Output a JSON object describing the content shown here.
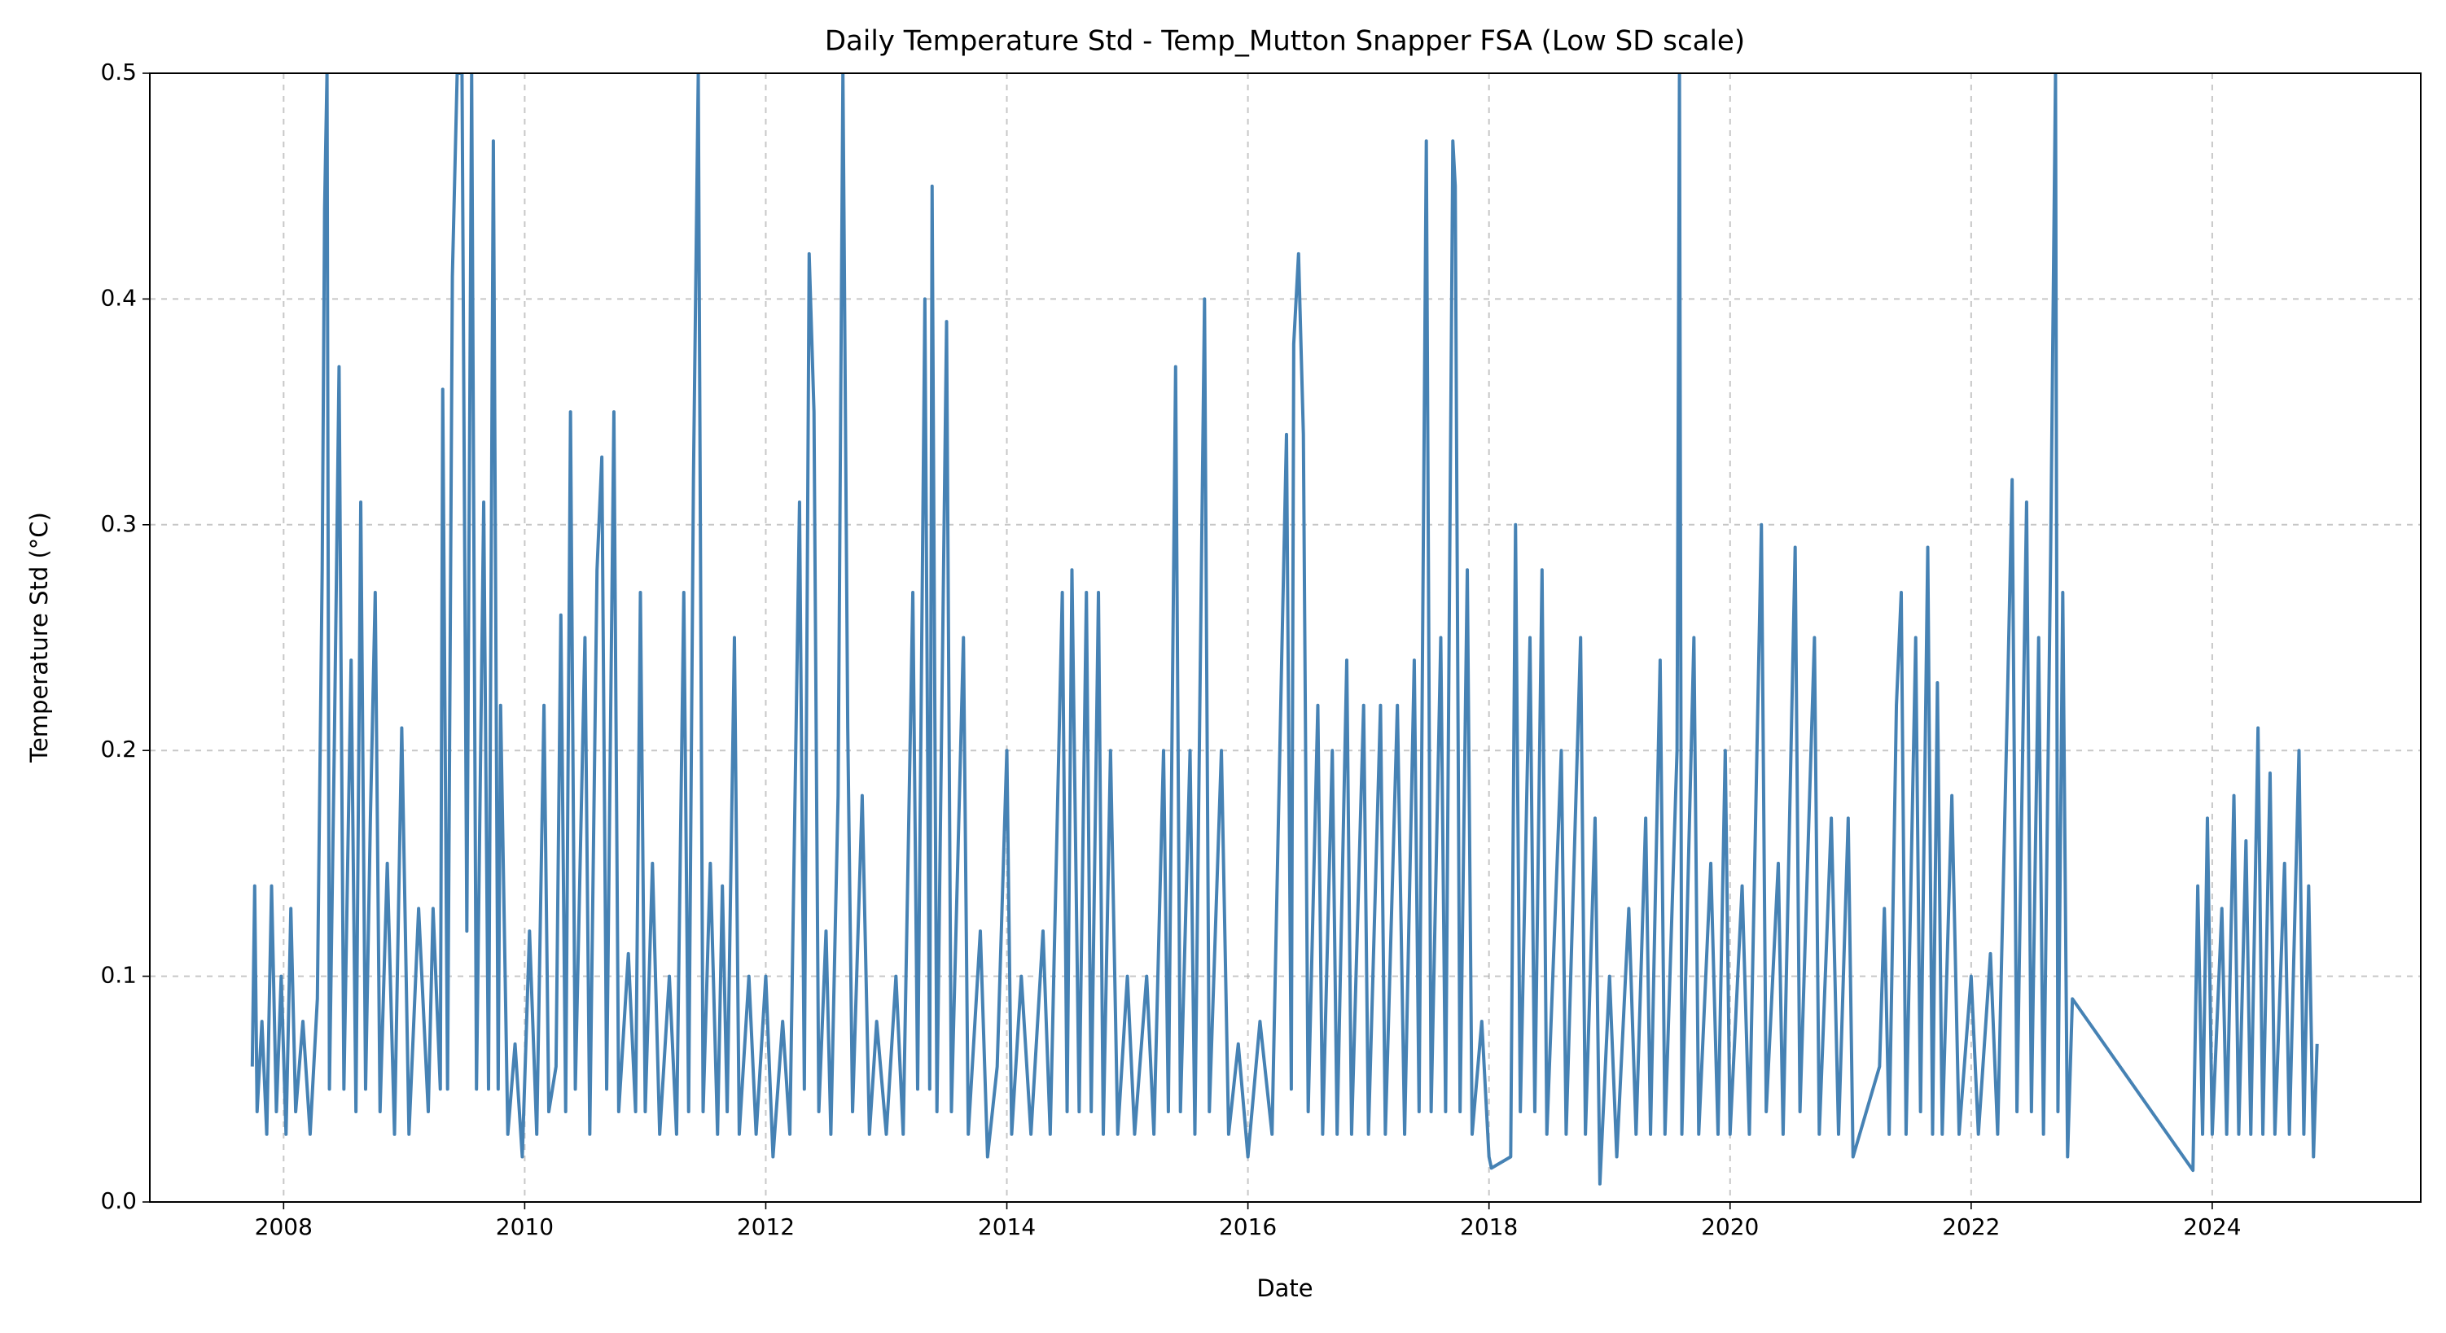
{
  "chart_data": {
    "type": "line",
    "title": "Daily Temperature Std - Temp_Mutton Snapper FSA (Low SD scale)",
    "xlabel": "Date",
    "ylabel": "Temperature Std (°C)",
    "xlim": [
      2006.89,
      2025.73
    ],
    "ylim": [
      0,
      0.5
    ],
    "xticks": [
      2008,
      2010,
      2012,
      2014,
      2016,
      2018,
      2020,
      2022,
      2024
    ],
    "yticks": [
      {
        "value": 0,
        "label": "0.0"
      },
      0.1,
      0.2,
      0.3,
      0.4,
      0.5
    ],
    "grid": true,
    "series": [
      {
        "name": "Temperature Std",
        "color": "#4682b4",
        "x": [
          2007.74,
          2007.76,
          2007.78,
          2007.82,
          2007.86,
          2007.9,
          2007.94,
          2007.98,
          2008.02,
          2008.06,
          2008.1,
          2008.16,
          2008.22,
          2008.28,
          2008.32,
          2008.34,
          2008.36,
          2008.38,
          2008.42,
          2008.46,
          2008.5,
          2008.56,
          2008.6,
          2008.64,
          2008.68,
          2008.72,
          2008.76,
          2008.8,
          2008.86,
          2008.92,
          2008.98,
          2009.04,
          2009.12,
          2009.2,
          2009.24,
          2009.3,
          2009.32,
          2009.36,
          2009.4,
          2009.44,
          2009.48,
          2009.52,
          2009.56,
          2009.6,
          2009.66,
          2009.7,
          2009.74,
          2009.78,
          2009.8,
          2009.86,
          2009.92,
          2009.98,
          2010.04,
          2010.1,
          2010.16,
          2010.2,
          2010.26,
          2010.3,
          2010.34,
          2010.38,
          2010.42,
          2010.5,
          2010.54,
          2010.6,
          2010.64,
          2010.68,
          2010.74,
          2010.78,
          2010.86,
          2010.92,
          2010.96,
          2011.0,
          2011.06,
          2011.12,
          2011.2,
          2011.26,
          2011.32,
          2011.36,
          2011.4,
          2011.44,
          2011.48,
          2011.54,
          2011.6,
          2011.64,
          2011.68,
          2011.74,
          2011.78,
          2011.86,
          2011.92,
          2012.0,
          2012.06,
          2012.14,
          2012.2,
          2012.28,
          2012.32,
          2012.36,
          2012.4,
          2012.44,
          2012.5,
          2012.54,
          2012.6,
          2012.64,
          2012.68,
          2012.72,
          2012.8,
          2012.86,
          2012.92,
          2013.0,
          2013.08,
          2013.14,
          2013.22,
          2013.26,
          2013.32,
          2013.36,
          2013.38,
          2013.42,
          2013.5,
          2013.54,
          2013.64,
          2013.68,
          2013.78,
          2013.84,
          2013.92,
          2014.0,
          2014.04,
          2014.12,
          2014.2,
          2014.3,
          2014.36,
          2014.46,
          2014.5,
          2014.54,
          2014.6,
          2014.66,
          2014.7,
          2014.76,
          2014.8,
          2014.86,
          2014.92,
          2015.0,
          2015.06,
          2015.16,
          2015.22,
          2015.3,
          2015.34,
          2015.4,
          2015.44,
          2015.52,
          2015.56,
          2015.64,
          2015.68,
          2015.78,
          2015.84,
          2015.92,
          2016.0,
          2016.1,
          2016.2,
          2016.28,
          2016.32,
          2016.36,
          2016.38,
          2016.42,
          2016.46,
          2016.5,
          2016.58,
          2016.62,
          2016.7,
          2016.74,
          2016.82,
          2016.86,
          2016.96,
          2017.0,
          2017.1,
          2017.14,
          2017.24,
          2017.3,
          2017.38,
          2017.42,
          2017.48,
          2017.52,
          2017.6,
          2017.64,
          2017.7,
          2017.72,
          2017.76,
          2017.82,
          2017.86,
          2017.94,
          2018.0,
          2018.02,
          2018.18,
          2018.22,
          2018.26,
          2018.34,
          2018.38,
          2018.44,
          2018.48,
          2018.6,
          2018.64,
          2018.76,
          2018.8,
          2018.88,
          2018.92,
          2019.0,
          2019.06,
          2019.16,
          2019.22,
          2019.3,
          2019.34,
          2019.42,
          2019.46,
          2019.56,
          2019.58,
          2019.6,
          2019.7,
          2019.74,
          2019.84,
          2019.9,
          2019.96,
          2020.0,
          2020.1,
          2020.16,
          2020.26,
          2020.3,
          2020.4,
          2020.44,
          2020.54,
          2020.58,
          2020.7,
          2020.74,
          2020.84,
          2020.9,
          2020.98,
          2021.02,
          2021.24,
          2021.28,
          2021.32,
          2021.38,
          2021.42,
          2021.46,
          2021.54,
          2021.58,
          2021.64,
          2021.68,
          2021.72,
          2021.76,
          2021.84,
          2021.9,
          2022.0,
          2022.06,
          2022.16,
          2022.22,
          2022.3,
          2022.34,
          2022.38,
          2022.46,
          2022.5,
          2022.56,
          2022.6,
          2022.66,
          2022.7,
          2022.72,
          2022.76,
          2022.8,
          2022.84,
          2023.84,
          2023.88,
          2023.92,
          2023.96,
          2024.0,
          2024.08,
          2024.12,
          2024.18,
          2024.22,
          2024.28,
          2024.32,
          2024.38,
          2024.42,
          2024.48,
          2024.52,
          2024.6,
          2024.64,
          2024.72,
          2024.76,
          2024.8,
          2024.84,
          2024.87
        ],
        "values": [
          0.06,
          0.14,
          0.04,
          0.08,
          0.03,
          0.14,
          0.04,
          0.1,
          0.03,
          0.13,
          0.04,
          0.08,
          0.03,
          0.09,
          0.28,
          0.44,
          0.5,
          0.05,
          0.2,
          0.37,
          0.05,
          0.24,
          0.04,
          0.31,
          0.05,
          0.17,
          0.27,
          0.04,
          0.15,
          0.03,
          0.21,
          0.03,
          0.13,
          0.04,
          0.13,
          0.05,
          0.36,
          0.05,
          0.41,
          0.5,
          0.5,
          0.12,
          0.5,
          0.05,
          0.31,
          0.05,
          0.47,
          0.05,
          0.22,
          0.03,
          0.07,
          0.02,
          0.12,
          0.03,
          0.22,
          0.04,
          0.06,
          0.26,
          0.04,
          0.35,
          0.05,
          0.25,
          0.03,
          0.28,
          0.33,
          0.05,
          0.35,
          0.04,
          0.11,
          0.04,
          0.27,
          0.04,
          0.15,
          0.03,
          0.1,
          0.03,
          0.27,
          0.04,
          0.32,
          0.5,
          0.04,
          0.15,
          0.03,
          0.14,
          0.04,
          0.25,
          0.03,
          0.1,
          0.03,
          0.1,
          0.02,
          0.08,
          0.03,
          0.31,
          0.05,
          0.42,
          0.35,
          0.04,
          0.12,
          0.03,
          0.18,
          0.5,
          0.21,
          0.04,
          0.18,
          0.03,
          0.08,
          0.03,
          0.1,
          0.03,
          0.27,
          0.05,
          0.4,
          0.05,
          0.45,
          0.04,
          0.39,
          0.04,
          0.25,
          0.03,
          0.12,
          0.02,
          0.06,
          0.2,
          0.03,
          0.1,
          0.03,
          0.12,
          0.03,
          0.27,
          0.04,
          0.28,
          0.04,
          0.27,
          0.04,
          0.27,
          0.03,
          0.2,
          0.03,
          0.1,
          0.03,
          0.1,
          0.03,
          0.2,
          0.04,
          0.37,
          0.04,
          0.2,
          0.03,
          0.4,
          0.04,
          0.2,
          0.03,
          0.07,
          0.02,
          0.08,
          0.03,
          0.24,
          0.34,
          0.05,
          0.38,
          0.42,
          0.34,
          0.04,
          0.22,
          0.03,
          0.2,
          0.03,
          0.24,
          0.03,
          0.22,
          0.03,
          0.22,
          0.03,
          0.22,
          0.03,
          0.24,
          0.04,
          0.47,
          0.04,
          0.25,
          0.04,
          0.47,
          0.45,
          0.04,
          0.28,
          0.03,
          0.08,
          0.02,
          0.015,
          0.02,
          0.3,
          0.04,
          0.25,
          0.04,
          0.28,
          0.03,
          0.2,
          0.03,
          0.25,
          0.03,
          0.17,
          0.008,
          0.1,
          0.02,
          0.13,
          0.03,
          0.17,
          0.03,
          0.24,
          0.03,
          0.2,
          0.5,
          0.03,
          0.25,
          0.03,
          0.15,
          0.03,
          0.2,
          0.03,
          0.14,
          0.03,
          0.3,
          0.04,
          0.15,
          0.03,
          0.29,
          0.04,
          0.25,
          0.03,
          0.17,
          0.03,
          0.17,
          0.02,
          0.06,
          0.13,
          0.03,
          0.22,
          0.27,
          0.03,
          0.25,
          0.04,
          0.29,
          0.03,
          0.23,
          0.03,
          0.18,
          0.03,
          0.1,
          0.03,
          0.11,
          0.03,
          0.22,
          0.32,
          0.04,
          0.31,
          0.04,
          0.25,
          0.03,
          0.29,
          0.5,
          0.04,
          0.27,
          0.02,
          0.09,
          0.014,
          0.14,
          0.03,
          0.17,
          0.03,
          0.13,
          0.03,
          0.18,
          0.03,
          0.16,
          0.03,
          0.21,
          0.03,
          0.19,
          0.03,
          0.15,
          0.03,
          0.2,
          0.03,
          0.14,
          0.02,
          0.07
        ]
      }
    ]
  }
}
